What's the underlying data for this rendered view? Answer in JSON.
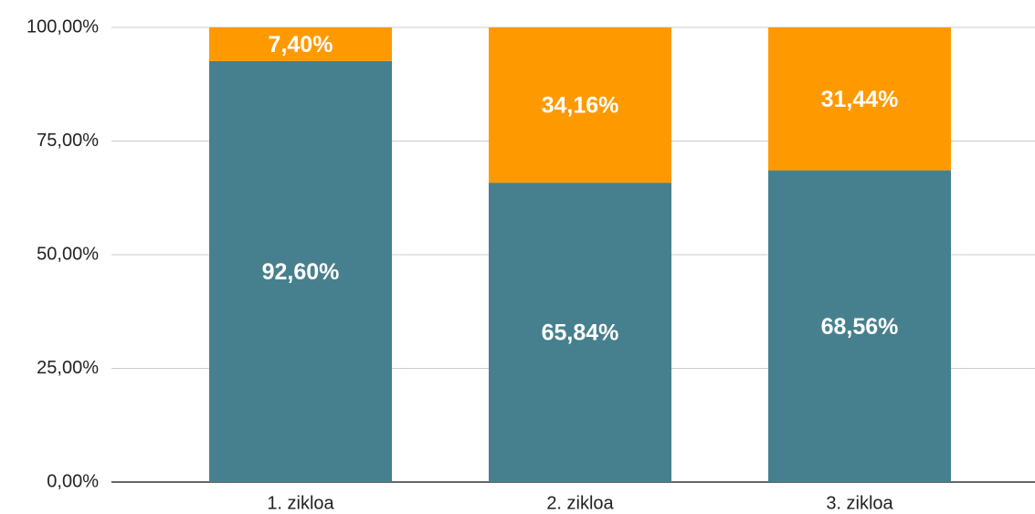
{
  "chart_data": {
    "type": "stacked_bar",
    "categories": [
      "1. zikloa",
      "2. zikloa",
      "3. zikloa"
    ],
    "series": [
      {
        "color": "#46808e",
        "values": [
          92.6,
          65.84,
          68.56
        ],
        "value_labels": [
          "92,60%",
          "65,84%",
          "68,56%"
        ]
      },
      {
        "color": "#ff9900",
        "values": [
          7.4,
          34.16,
          31.44
        ],
        "value_labels": [
          "7,40%",
          "34,16%",
          "31,44%"
        ]
      }
    ],
    "ylim": [
      0,
      100
    ],
    "yticks": [
      {
        "value": 0,
        "label": "0,00%"
      },
      {
        "value": 25,
        "label": "25,00%"
      },
      {
        "value": 50,
        "label": "50,00%"
      },
      {
        "value": 75,
        "label": "75,00%"
      },
      {
        "value": 100,
        "label": "100,00%"
      }
    ],
    "grid": true
  }
}
